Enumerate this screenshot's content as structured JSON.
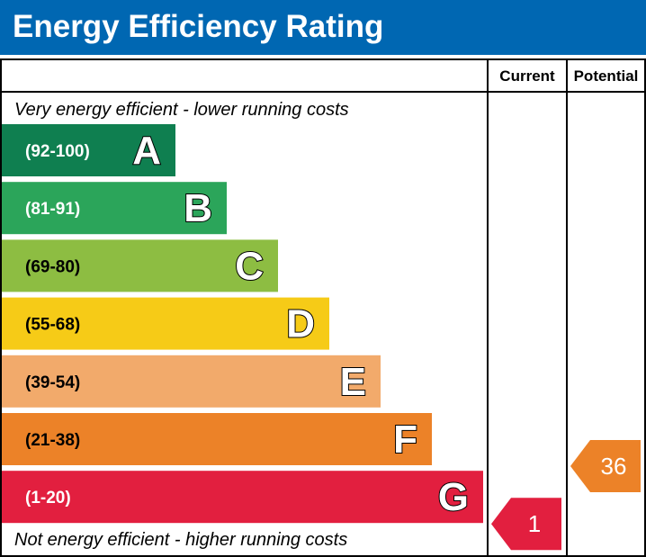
{
  "header": {
    "title": "Energy Efficiency Rating"
  },
  "chart_data": {
    "type": "bar",
    "title": "Energy Efficiency Rating",
    "columns": [
      "Current",
      "Potential"
    ],
    "top_caption": "Very energy efficient - lower running costs",
    "bottom_caption": "Not energy efficient - higher running costs",
    "bands": [
      {
        "letter": "A",
        "range": "(92-100)",
        "min": 92,
        "max": 100,
        "color": "#0f7f50"
      },
      {
        "letter": "B",
        "range": "(81-91)",
        "min": 81,
        "max": 91,
        "color": "#2ba55a"
      },
      {
        "letter": "C",
        "range": "(69-80)",
        "min": 69,
        "max": 80,
        "color": "#8dbd42"
      },
      {
        "letter": "D",
        "range": "(55-68)",
        "min": 55,
        "max": 68,
        "color": "#f6cb17"
      },
      {
        "letter": "E",
        "range": "(39-54)",
        "min": 39,
        "max": 54,
        "color": "#f2aa6b"
      },
      {
        "letter": "F",
        "range": "(21-38)",
        "min": 21,
        "max": 38,
        "color": "#ec8228"
      },
      {
        "letter": "G",
        "range": "(1-20)",
        "min": 1,
        "max": 20,
        "color": "#e21f3f"
      }
    ],
    "ratings": {
      "current": {
        "value": 1,
        "band": "G",
        "color": "#e21f3f"
      },
      "potential": {
        "value": 36,
        "band": "F",
        "color": "#ec8228"
      }
    }
  }
}
